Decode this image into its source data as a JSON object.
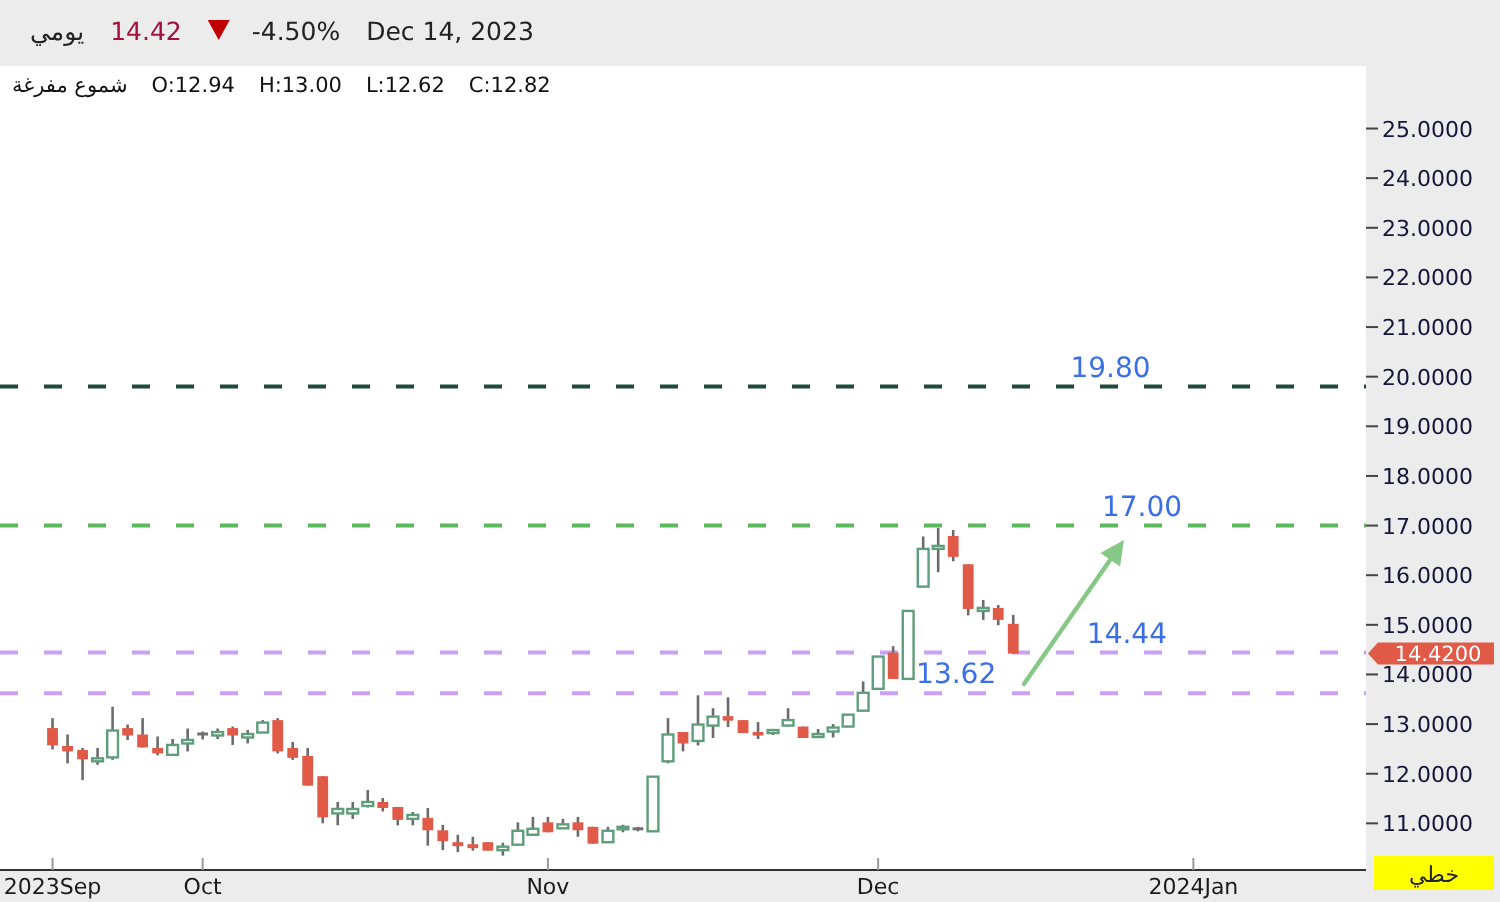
{
  "chart_data": {
    "type": "candlestick",
    "categories": [
      null,
      null,
      null,
      "2023Sep",
      null,
      null,
      null,
      null,
      null,
      null,
      null,
      null,
      null,
      "Oct",
      null,
      null,
      null,
      null,
      null,
      null,
      null,
      null,
      null,
      null,
      null,
      null,
      null,
      null,
      null,
      null,
      null,
      null,
      null,
      null,
      null,
      null,
      "Nov",
      null,
      null,
      null,
      null,
      null,
      null,
      null,
      null,
      null,
      null,
      null,
      null,
      null,
      null,
      null,
      null,
      null,
      null,
      null,
      null,
      null,
      "Dec",
      null,
      null,
      null,
      null,
      null,
      null,
      null,
      null,
      null,
      null,
      null,
      null,
      null,
      null,
      null,
      null,
      null,
      null,
      null,
      null,
      "2024Jan",
      null,
      null,
      null,
      null,
      null,
      null,
      null,
      null,
      null,
      null,
      null
    ],
    "ohlc": [
      null,
      null,
      null,
      [
        12.92,
        13.12,
        12.49,
        12.57
      ],
      [
        12.56,
        12.79,
        12.21,
        12.45
      ],
      [
        12.48,
        12.52,
        11.87,
        12.29
      ],
      [
        12.25,
        12.52,
        12.18,
        12.31
      ],
      [
        12.33,
        13.35,
        12.28,
        12.87
      ],
      [
        12.92,
        12.99,
        12.68,
        12.77
      ],
      [
        12.79,
        13.12,
        12.53,
        12.53
      ],
      [
        12.52,
        12.75,
        12.37,
        12.41
      ],
      [
        12.38,
        12.7,
        12.38,
        12.58
      ],
      [
        12.61,
        12.91,
        12.45,
        12.68
      ],
      [
        12.8,
        12.85,
        12.69,
        12.8
      ],
      [
        12.77,
        12.91,
        12.7,
        12.84
      ],
      [
        12.92,
        12.95,
        12.58,
        12.77
      ],
      [
        12.73,
        12.88,
        12.61,
        12.8
      ],
      [
        12.83,
        13.08,
        12.83,
        13.03
      ],
      [
        13.08,
        13.12,
        12.41,
        12.45
      ],
      [
        12.52,
        12.64,
        12.28,
        12.32
      ],
      [
        12.36,
        12.52,
        11.76,
        11.76
      ],
      [
        11.95,
        11.95,
        11.0,
        11.12
      ],
      [
        11.2,
        11.43,
        10.96,
        11.29
      ],
      [
        11.2,
        11.43,
        11.09,
        11.29
      ],
      [
        11.35,
        11.67,
        11.32,
        11.43
      ],
      [
        11.43,
        11.51,
        11.24,
        11.31
      ],
      [
        11.33,
        11.33,
        10.96,
        11.07
      ],
      [
        11.09,
        11.23,
        10.96,
        11.17
      ],
      [
        11.11,
        11.31,
        10.55,
        10.86
      ],
      [
        10.86,
        10.97,
        10.46,
        10.64
      ],
      [
        10.62,
        10.77,
        10.42,
        10.54
      ],
      [
        10.58,
        10.73,
        10.45,
        10.5
      ],
      [
        10.62,
        10.62,
        10.45,
        10.45
      ],
      [
        10.46,
        10.61,
        10.35,
        10.53
      ],
      [
        10.57,
        11.02,
        10.57,
        10.85
      ],
      [
        10.77,
        11.13,
        10.77,
        10.89
      ],
      [
        11.02,
        11.13,
        10.82,
        10.82
      ],
      [
        10.9,
        11.09,
        10.89,
        10.98
      ],
      [
        11.02,
        11.13,
        10.73,
        10.86
      ],
      [
        10.93,
        10.93,
        10.59,
        10.59
      ],
      [
        10.62,
        10.93,
        10.62,
        10.85
      ],
      [
        10.88,
        10.97,
        10.82,
        10.93
      ],
      [
        10.89,
        10.93,
        10.84,
        10.89
      ],
      [
        10.84,
        11.94,
        10.84,
        11.94
      ],
      [
        12.25,
        13.12,
        12.21,
        12.79
      ],
      [
        12.84,
        12.84,
        12.45,
        12.61
      ],
      [
        12.66,
        13.58,
        12.57,
        12.99
      ],
      [
        12.97,
        13.32,
        12.72,
        13.15
      ],
      [
        13.16,
        13.54,
        12.94,
        13.07
      ],
      [
        13.08,
        13.08,
        12.82,
        12.82
      ],
      [
        12.84,
        13.04,
        12.7,
        12.77
      ],
      [
        12.82,
        12.9,
        12.78,
        12.88
      ],
      [
        12.97,
        13.32,
        12.95,
        13.08
      ],
      [
        12.95,
        12.95,
        12.72,
        12.72
      ],
      [
        12.74,
        12.9,
        12.72,
        12.8
      ],
      [
        12.85,
        13.0,
        12.73,
        12.93
      ],
      [
        12.95,
        13.19,
        12.95,
        13.19
      ],
      [
        13.27,
        13.86,
        13.27,
        13.63
      ],
      [
        13.71,
        14.36,
        13.71,
        14.36
      ],
      [
        14.44,
        14.57,
        13.91,
        13.91
      ],
      [
        13.91,
        15.28,
        13.91,
        15.28
      ],
      [
        15.77,
        16.78,
        15.77,
        16.53
      ],
      [
        16.53,
        16.95,
        16.06,
        16.59
      ],
      [
        16.79,
        16.91,
        16.28,
        16.37
      ],
      [
        16.22,
        16.22,
        15.19,
        15.32
      ],
      [
        15.28,
        15.5,
        15.1,
        15.34
      ],
      [
        15.34,
        15.4,
        14.99,
        15.1
      ],
      [
        15.02,
        15.2,
        14.42,
        14.42
      ],
      null,
      null,
      null,
      null,
      null,
      null,
      null,
      null,
      null,
      null,
      null,
      null,
      null,
      null,
      null,
      null,
      null,
      null,
      null,
      null,
      null,
      null,
      null
    ],
    "colors": [
      null,
      null,
      null,
      "#e05a47",
      "#e05a47",
      "#e05a47",
      "#5f9e7a",
      "#5f9e7a",
      "#e05a47",
      "#e05a47",
      "#e05a47",
      "#5f9e7a",
      "#5f9e7a",
      "#707070",
      "#5f9e7a",
      "#e05a47",
      "#5f9e7a",
      "#5f9e7a",
      "#e05a47",
      "#e05a47",
      "#e05a47",
      "#e05a47",
      "#5f9e7a",
      "#5f9e7a",
      "#5f9e7a",
      "#e05a47",
      "#e05a47",
      "#5f9e7a",
      "#e05a47",
      "#e05a47",
      "#e05a47",
      "#e05a47",
      "#e05a47",
      "#5f9e7a",
      "#5f9e7a",
      "#5f9e7a",
      "#e05a47",
      "#5f9e7a",
      "#e05a47",
      "#e05a47",
      "#5f9e7a",
      "#5f9e7a",
      "#707070",
      "#5f9e7a",
      "#5f9e7a",
      "#e05a47",
      "#5f9e7a",
      "#5f9e7a",
      "#e05a47",
      "#e05a47",
      "#e05a47",
      "#5f9e7a",
      "#5f9e7a",
      "#e05a47",
      "#5f9e7a",
      "#5f9e7a",
      "#5f9e7a",
      "#5f9e7a",
      "#5f9e7a",
      "#e05a47",
      "#5f9e7a",
      "#5f9e7a",
      "#5f9e7a",
      "#e05a47",
      "#e05a47",
      "#5f9e7a",
      "#e05a47",
      "#e05a47",
      null,
      null,
      null,
      null,
      null,
      null,
      null,
      null,
      null,
      null,
      null,
      null,
      null,
      null,
      null,
      null,
      null,
      null,
      null,
      null,
      null,
      null,
      null
    ],
    "ylim": [
      10.06,
      26.26
    ],
    "yticks": [
      {
        "value": 11,
        "label": "11.0000"
      },
      {
        "value": 12,
        "label": "12.0000"
      },
      {
        "value": 13,
        "label": "13.0000"
      },
      {
        "value": 14,
        "label": "14.0000"
      },
      {
        "value": 15,
        "label": "15.0000"
      },
      {
        "value": 16,
        "label": "16.0000"
      },
      {
        "value": 17,
        "label": "17.0000"
      },
      {
        "value": 18,
        "label": "18.0000"
      },
      {
        "value": 19,
        "label": "19.0000"
      },
      {
        "value": 20,
        "label": "20.0000"
      },
      {
        "value": 21,
        "label": "21.0000"
      },
      {
        "value": 22,
        "label": "22.0000"
      },
      {
        "value": 23,
        "label": "23.0000"
      },
      {
        "value": 24,
        "label": "24.0000"
      },
      {
        "value": 25,
        "label": "25.0000"
      }
    ],
    "ref_lines": [
      {
        "axis": "y",
        "value": 19.8,
        "label": "19.80",
        "color": "#1e4a3c",
        "line_style": "dashed"
      },
      {
        "axis": "y",
        "value": 17.0,
        "label": "17.00",
        "color": "#5cb85c",
        "line_style": "dashed"
      },
      {
        "axis": "y",
        "value": 14.44,
        "label": "14.44",
        "color": "#c9a0f5",
        "line_style": "dashed"
      },
      {
        "axis": "y",
        "value": 13.62,
        "label": "13.62",
        "color": "#c9a0f5",
        "line_style": "dashed"
      }
    ],
    "annotations": [
      "يومي",
      "14.42",
      "-4.50%",
      "Dec 14, 2023",
      "شموع مفرغة",
      "O:12.94",
      "H:13.00",
      "L:12.62",
      "C:12.82",
      "14.4200",
      "خطي"
    ]
  }
}
